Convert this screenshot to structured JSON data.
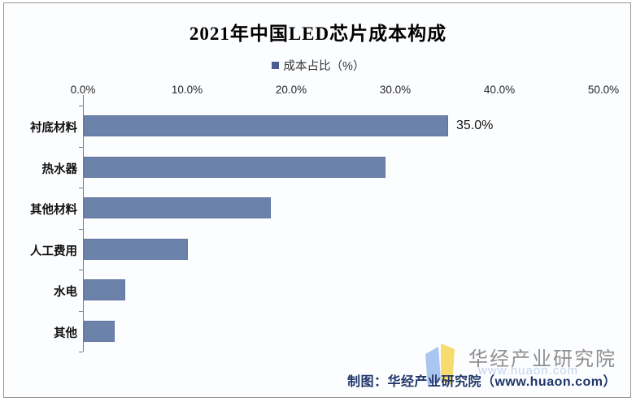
{
  "title": "2021年中国LED芯片成本构成",
  "legend": {
    "label": "成本占比（%）",
    "marker_color": "#4C5E8F"
  },
  "chart_data": {
    "type": "bar",
    "orientation": "horizontal",
    "title": "2021年中国LED芯片成本构成",
    "series_name": "成本占比（%）",
    "categories": [
      "衬底材料",
      "热水器",
      "其他材料",
      "人工费用",
      "水电",
      "其他"
    ],
    "values": [
      35.0,
      29.0,
      18.0,
      10.0,
      4.0,
      3.0
    ],
    "value_labels": [
      "35.0%",
      "",
      "",
      "",
      "",
      ""
    ],
    "xlabel": "",
    "ylabel": "",
    "xlim": [
      0,
      50
    ],
    "x_ticks": [
      "0.0%",
      "10.0%",
      "20.0%",
      "30.0%",
      "40.0%",
      "50.0%"
    ],
    "axis_position": "top",
    "grid": false,
    "legend_position": "top",
    "bar_color": "#6D82AB",
    "bar_border_color": "#60759F"
  },
  "footer": {
    "credit": "制图：华经产业研究院（www.huaon.com）"
  },
  "logo": {
    "name": "华经产业研究院",
    "watermark": "www.huaon.com",
    "blue": "#A9C6F1",
    "yellow": "#F6DC6E"
  }
}
